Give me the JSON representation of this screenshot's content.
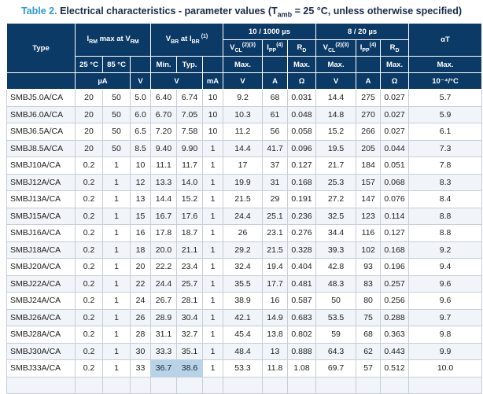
{
  "caption": {
    "table_number": "Table 2.",
    "title_main": "Electrical characteristics - parameter values (T",
    "title_sub": "amb",
    "title_rest": " = 25 °C, unless otherwise specified)"
  },
  "headers": {
    "type": "Type",
    "irm_group": {
      "a": "I",
      "a_sub": "RM",
      "b": " max at V",
      "b_sub": "RM"
    },
    "vbr_group": {
      "a": "V",
      "a_sub": "BR",
      "b": " at I",
      "b_sub": "BR",
      "sup": " (1)"
    },
    "pulse_10_1000": "10 / 1000 µs",
    "pulse_8_20": "8 / 20 µs",
    "alpha_t": "αT",
    "vcl": {
      "a": "V",
      "a_sub": "CL",
      "sup": "(2)(3)"
    },
    "ipp": {
      "a": "I",
      "a_sub": "PP",
      "sup": "(4)"
    },
    "rd": {
      "a": "R",
      "a_sub": "D"
    },
    "temp_25": "25 °C",
    "temp_85": "85 °C",
    "min": "Min.",
    "typ": "Typ.",
    "max": "Max.",
    "unit_ua": "µA",
    "unit_v": "V",
    "unit_ma": "mA",
    "unit_a": "A",
    "unit_ohm": "Ω",
    "unit_alpha": "10⁻⁴/°C"
  },
  "rows": [
    [
      "SMBJ5.0A/CA",
      "20",
      "50",
      "5.0",
      "6.40",
      "6.74",
      "10",
      "9.2",
      "68",
      "0.031",
      "14.4",
      "275",
      "0.027",
      "5.7"
    ],
    [
      "SMBJ6.0A/CA",
      "20",
      "50",
      "6.0",
      "6.70",
      "7.05",
      "10",
      "10.3",
      "61",
      "0.048",
      "14.8",
      "270",
      "0.027",
      "5.9"
    ],
    [
      "SMBJ6.5A/CA",
      "20",
      "50",
      "6.5",
      "7.20",
      "7.58",
      "10",
      "11.2",
      "56",
      "0.058",
      "15.2",
      "266",
      "0.027",
      "6.1"
    ],
    [
      "SMBJ8.5A/CA",
      "20",
      "50",
      "8.5",
      "9.40",
      "9.90",
      "1",
      "14.4",
      "41.7",
      "0.096",
      "19.5",
      "205",
      "0.044",
      "7.3"
    ],
    [
      "SMBJ10A/CA",
      "0.2",
      "1",
      "10",
      "11.1",
      "11.7",
      "1",
      "17",
      "37",
      "0.127",
      "21.7",
      "184",
      "0.051",
      "7.8"
    ],
    [
      "SMBJ12A/CA",
      "0.2",
      "1",
      "12",
      "13.3",
      "14.0",
      "1",
      "19.9",
      "31",
      "0.168",
      "25.3",
      "157",
      "0.068",
      "8.3"
    ],
    [
      "SMBJ13A/CA",
      "0.2",
      "1",
      "13",
      "14.4",
      "15.2",
      "1",
      "21.5",
      "29",
      "0.191",
      "27.2",
      "147",
      "0.076",
      "8.4"
    ],
    [
      "SMBJ15A/CA",
      "0.2",
      "1",
      "15",
      "16.7",
      "17.6",
      "1",
      "24.4",
      "25.1",
      "0.236",
      "32.5",
      "123",
      "0.114",
      "8.8"
    ],
    [
      "SMBJ16A/CA",
      "0.2",
      "1",
      "16",
      "17.8",
      "18.7",
      "1",
      "26",
      "23.1",
      "0.276",
      "34.4",
      "116",
      "0.127",
      "8.8"
    ],
    [
      "SMBJ18A/CA",
      "0.2",
      "1",
      "18",
      "20.0",
      "21.1",
      "1",
      "29.2",
      "21.5",
      "0.328",
      "39.3",
      "102",
      "0.168",
      "9.2"
    ],
    [
      "SMBJ20A/CA",
      "0.2",
      "1",
      "20",
      "22.2",
      "23.4",
      "1",
      "32.4",
      "19.4",
      "0.404",
      "42.8",
      "93",
      "0.196",
      "9.4"
    ],
    [
      "SMBJ22A/CA",
      "0.2",
      "1",
      "22",
      "24.4",
      "25.7",
      "1",
      "35.5",
      "17.7",
      "0.481",
      "48.3",
      "83",
      "0.257",
      "9.6"
    ],
    [
      "SMBJ24A/CA",
      "0.2",
      "1",
      "24",
      "26.7",
      "28.1",
      "1",
      "38.9",
      "16",
      "0.587",
      "50",
      "80",
      "0.256",
      "9.6"
    ],
    [
      "SMBJ26A/CA",
      "0.2",
      "1",
      "26",
      "28.9",
      "30.4",
      "1",
      "42.1",
      "14.9",
      "0.683",
      "53.5",
      "75",
      "0.288",
      "9.7"
    ],
    [
      "SMBJ28A/CA",
      "0.2",
      "1",
      "28",
      "31.1",
      "32.7",
      "1",
      "45.4",
      "13.8",
      "0.802",
      "59",
      "68",
      "0.363",
      "9.8"
    ],
    [
      "SMBJ30A/CA",
      "0.2",
      "1",
      "30",
      "33.3",
      "35.1",
      "1",
      "48.4",
      "13",
      "0.888",
      "64.3",
      "62",
      "0.443",
      "9.9"
    ],
    [
      "SMBJ33A/CA",
      "0.2",
      "1",
      "33",
      "36.7",
      "38.6",
      "1",
      "53.3",
      "11.8",
      "1.08",
      "69.7",
      "57",
      "0.512",
      "10.0"
    ],
    [
      "",
      "",
      "",
      "",
      "",
      "",
      "",
      "",
      "",
      "",
      "",
      "",
      "",
      ""
    ]
  ],
  "highlighted_cells": [
    [
      16,
      4
    ],
    [
      16,
      5
    ]
  ],
  "colors": {
    "header_bg": "#0b3a66",
    "caption_accent": "#2b9ad6",
    "row_alt": "#f1f4f8",
    "highlight": "#b7d3ea"
  }
}
